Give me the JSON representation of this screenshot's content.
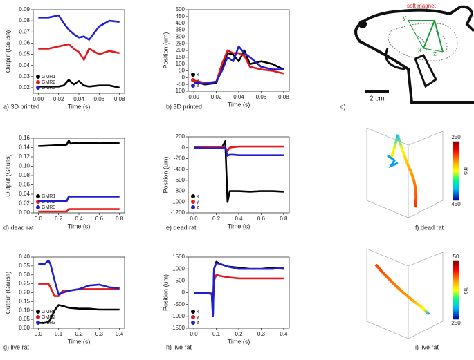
{
  "chart_data": [
    {
      "type": "line",
      "caption": "a) 3D printed",
      "x_label": "Time (s)",
      "y_label": "Output (Gauss)",
      "legend": "lower left",
      "xlim": [
        -0.005,
        0.085
      ],
      "ylim": [
        0.015,
        0.09
      ],
      "xticks": [
        {
          "value": 0,
          "label": "0.00"
        },
        0.02,
        0.04,
        0.06,
        0.08
      ],
      "yticks": [
        0.02,
        0.03,
        0.04,
        0.05,
        0.06,
        0.07,
        0.08,
        0.09
      ],
      "x": [
        0,
        0.01,
        0.02,
        0.025,
        0.03,
        0.035,
        0.04,
        0.045,
        0.05,
        0.06,
        0.07,
        0.08
      ],
      "series": [
        {
          "name": "GMR1",
          "color": "#000000",
          "values": [
            0.021,
            0.021,
            0.021,
            0.022,
            0.027,
            0.023,
            0.026,
            0.022,
            0.021,
            0.022,
            0.022,
            0.02
          ]
        },
        {
          "name": "GMR2",
          "color": "#e31a1c",
          "values": [
            0.055,
            0.055,
            0.057,
            0.058,
            0.059,
            0.055,
            0.052,
            0.045,
            0.055,
            0.05,
            0.053,
            0.051
          ]
        },
        {
          "name": "GMR3",
          "color": "#1f1fd0",
          "values": [
            0.083,
            0.083,
            0.085,
            0.078,
            0.072,
            0.068,
            0.065,
            0.066,
            0.063,
            0.075,
            0.08,
            0.079
          ]
        }
      ]
    },
    {
      "type": "line",
      "caption": "b) 3D printed",
      "x_label": "Time (s)",
      "y_label": "Position (um)",
      "legend": "lower left",
      "xlim": [
        -0.005,
        0.085
      ],
      "ylim": [
        -100,
        500
      ],
      "xticks": [
        {
          "value": 0,
          "label": "0.00"
        },
        0.02,
        0.04,
        0.06,
        0.08
      ],
      "yticks": [
        -100,
        -50,
        0,
        50,
        100,
        150,
        200,
        250,
        300,
        350,
        400,
        450,
        500
      ],
      "x": [
        0,
        0.01,
        0.02,
        0.025,
        0.03,
        0.035,
        0.04,
        0.045,
        0.05,
        0.06,
        0.07,
        0.08
      ],
      "series": [
        {
          "name": "x",
          "color": "#000000",
          "values": [
            -30,
            -50,
            -40,
            80,
            180,
            170,
            120,
            200,
            100,
            120,
            100,
            60
          ]
        },
        {
          "name": "y",
          "color": "#e31a1c",
          "values": [
            -20,
            -40,
            -30,
            100,
            200,
            180,
            180,
            160,
            80,
            60,
            50,
            30
          ]
        },
        {
          "name": "z",
          "color": "#1f1fd0",
          "values": [
            -40,
            -45,
            -30,
            50,
            150,
            120,
            230,
            180,
            150,
            80,
            60,
            60
          ]
        }
      ]
    },
    {
      "type": "line",
      "caption": "d) dead rat",
      "x_label": "Time (s)",
      "y_label": "Output (Gauss)",
      "legend": "lower left",
      "xlim": [
        -0.05,
        0.85
      ],
      "ylim": [
        0,
        0.16
      ],
      "xticks": [
        {
          "value": 0,
          "label": "0.0"
        },
        0.2,
        0.4,
        0.6,
        0.8
      ],
      "yticks": [
        {
          "value": 0,
          "label": "0.00"
        },
        0.02,
        0.04,
        0.06,
        0.08,
        {
          "value": 0.1,
          "label": "0.10"
        },
        0.12,
        0.14,
        0.16
      ],
      "x": [
        0,
        0.1,
        0.2,
        0.25,
        0.28,
        0.3,
        0.32,
        0.35,
        0.4,
        0.5,
        0.6,
        0.7,
        0.8
      ],
      "series": [
        {
          "name": "GMR1",
          "color": "#000000",
          "values": [
            0.143,
            0.144,
            0.145,
            0.145,
            0.146,
            0.155,
            0.148,
            0.15,
            0.149,
            0.15,
            0.149,
            0.15,
            0.149
          ]
        },
        {
          "name": "GMR2",
          "color": "#e31a1c",
          "values": [
            0.003,
            0.003,
            0.003,
            0.003,
            0.003,
            0.008,
            0.008,
            0.008,
            0.008,
            0.008,
            0.008,
            0.008,
            0.008
          ]
        },
        {
          "name": "GMR3",
          "color": "#1f1fd0",
          "values": [
            0.025,
            0.025,
            0.025,
            0.025,
            0.025,
            0.035,
            0.035,
            0.035,
            0.035,
            0.035,
            0.035,
            0.035,
            0.035
          ]
        }
      ]
    },
    {
      "type": "line",
      "caption": "e) dead rat",
      "x_label": "Time (s)",
      "y_label": "Position (um)",
      "legend": "lower left",
      "xlim": [
        -0.05,
        0.85
      ],
      "ylim": [
        -1200,
        200
      ],
      "xticks": [
        {
          "value": 0,
          "label": "0.0"
        },
        0.2,
        0.4,
        0.6,
        0.8
      ],
      "yticks": [
        -1200,
        -1000,
        -800,
        -600,
        -400,
        -200,
        0,
        200
      ],
      "x": [
        0,
        0.1,
        0.2,
        0.25,
        0.28,
        0.3,
        0.32,
        0.35,
        0.4,
        0.5,
        0.6,
        0.7,
        0.8
      ],
      "series": [
        {
          "name": "x",
          "color": "#000000",
          "values": [
            0,
            0,
            0,
            0,
            120,
            -1000,
            -800,
            -800,
            -800,
            -810,
            -800,
            -800,
            -810
          ]
        },
        {
          "name": "y",
          "color": "#e31a1c",
          "values": [
            10,
            10,
            10,
            10,
            0,
            -60,
            0,
            10,
            20,
            20,
            20,
            20,
            20
          ]
        },
        {
          "name": "z",
          "color": "#1f1fd0",
          "values": [
            0,
            -10,
            -10,
            -10,
            0,
            -150,
            -130,
            -130,
            -140,
            -140,
            -140,
            -140,
            -140
          ]
        }
      ]
    },
    {
      "type": "line",
      "caption": "g) live rat",
      "x_label": "Time (s)",
      "y_label": "Output (Gauss)",
      "legend": "lower left",
      "xlim": [
        -0.025,
        0.425
      ],
      "ylim": [
        0,
        0.4
      ],
      "xticks": [
        {
          "value": 0,
          "label": "0.0"
        },
        0.1,
        0.2,
        0.3,
        0.4
      ],
      "yticks": [
        {
          "value": 0,
          "label": "0.00"
        },
        0.05,
        {
          "value": 0.1,
          "label": "0.10"
        },
        0.15,
        {
          "value": 0.2,
          "label": "0.20"
        },
        0.25,
        {
          "value": 0.3,
          "label": "0.30"
        },
        0.35,
        {
          "value": 0.4,
          "label": "0.40"
        }
      ],
      "x": [
        0,
        0.03,
        0.05,
        0.06,
        0.08,
        0.1,
        0.12,
        0.15,
        0.2,
        0.25,
        0.3,
        0.35,
        0.4
      ],
      "series": [
        {
          "name": "GMR1",
          "color": "#000000",
          "values": [
            0.03,
            0.03,
            0.035,
            0.05,
            0.1,
            0.13,
            0.125,
            0.115,
            0.11,
            0.11,
            0.105,
            0.105,
            0.105
          ]
        },
        {
          "name": "GMR2",
          "color": "#e31a1c",
          "values": [
            0.25,
            0.25,
            0.25,
            0.23,
            0.18,
            0.18,
            0.21,
            0.21,
            0.22,
            0.22,
            0.22,
            0.22,
            0.22
          ]
        },
        {
          "name": "GMR3",
          "color": "#1f1fd0",
          "values": [
            0.36,
            0.36,
            0.38,
            0.36,
            0.27,
            0.19,
            0.2,
            0.21,
            0.22,
            0.24,
            0.245,
            0.23,
            0.225
          ]
        }
      ]
    },
    {
      "type": "line",
      "caption": "h) live rat",
      "x_label": "Time (s)",
      "y_label": "Position (um)",
      "legend": "lower left",
      "xlim": [
        -0.025,
        0.425
      ],
      "ylim": [
        -1500,
        1500
      ],
      "xticks": [
        {
          "value": 0,
          "label": "0.0"
        },
        0.1,
        0.2,
        0.3,
        0.4
      ],
      "yticks": [
        -1500,
        -1000,
        -500,
        0,
        500,
        1000,
        1500
      ],
      "x": [
        0,
        0.05,
        0.08,
        0.085,
        0.09,
        0.1,
        0.12,
        0.15,
        0.2,
        0.25,
        0.3,
        0.35,
        0.4
      ],
      "series": [
        {
          "name": "x",
          "color": "#000000",
          "values": [
            -20,
            -20,
            -50,
            -1000,
            1000,
            1300,
            1200,
            1100,
            1050,
            1000,
            1000,
            1050,
            1000
          ]
        },
        {
          "name": "y",
          "color": "#e31a1c",
          "values": [
            0,
            0,
            -30,
            -600,
            500,
            750,
            700,
            650,
            600,
            600,
            600,
            600,
            600
          ]
        },
        {
          "name": "z",
          "color": "#1f1fd0",
          "values": [
            -10,
            -10,
            -50,
            -1000,
            1000,
            1250,
            1200,
            1100,
            1000,
            1000,
            1000,
            1000,
            1050
          ]
        }
      ]
    },
    {
      "type": "trajectory3d",
      "caption": "f) dead rat",
      "colorbar_label": "ms",
      "clim": [
        250,
        450
      ],
      "colorbar_ticks": [
        250,
        450
      ]
    },
    {
      "type": "trajectory3d",
      "caption": "i) live rat",
      "colorbar_label": "ms",
      "clim": [
        50,
        250
      ],
      "colorbar_ticks": [
        50,
        250
      ]
    }
  ],
  "diagram": {
    "caption": "c)",
    "magnet_label": "soft magnet",
    "axes": [
      "y",
      "x",
      "z"
    ],
    "scale_label": "2 cm"
  }
}
